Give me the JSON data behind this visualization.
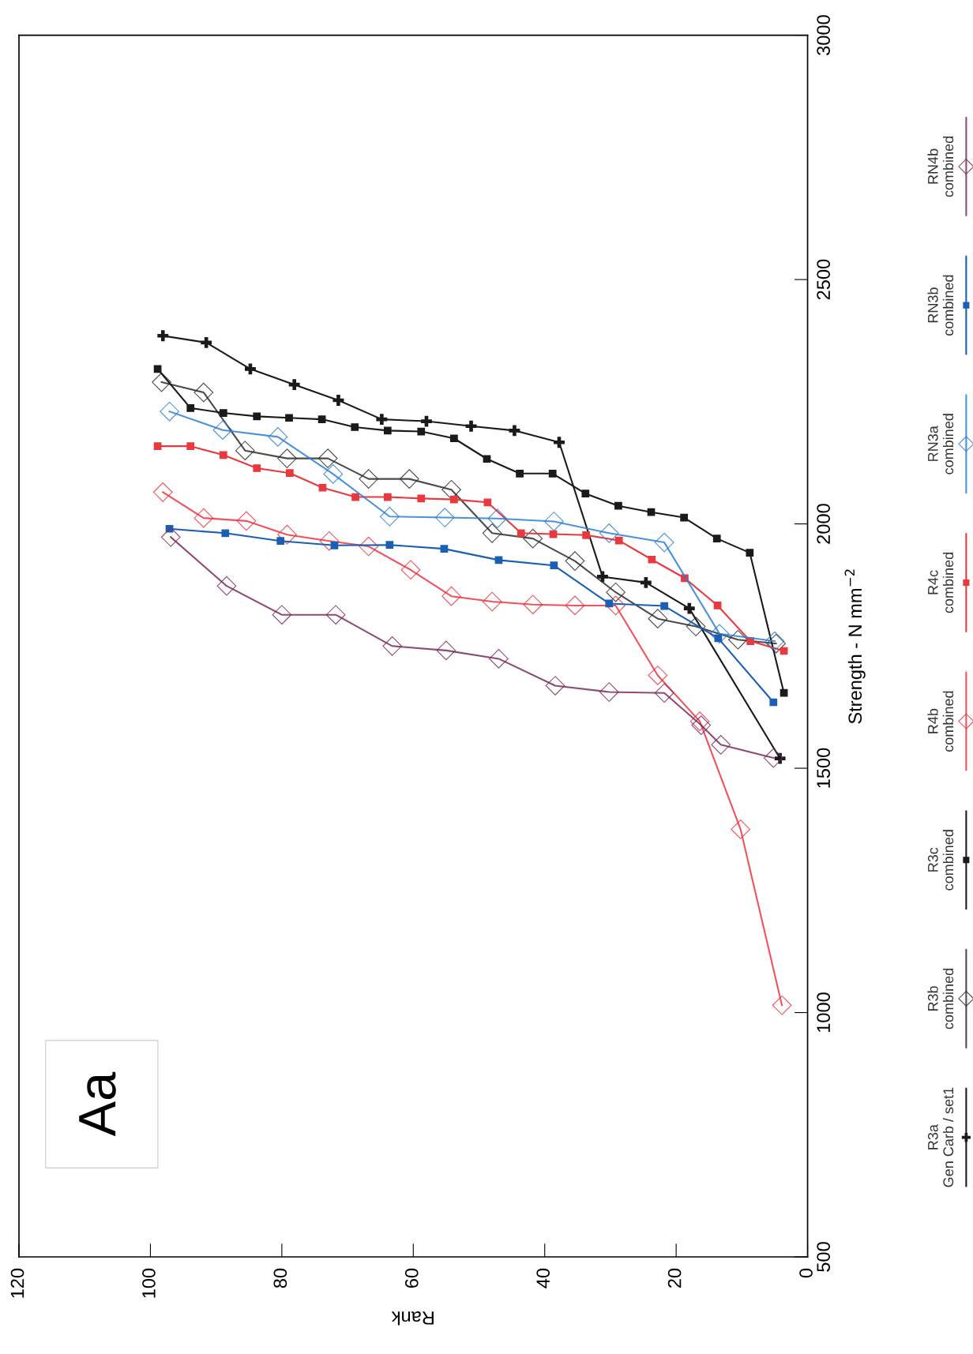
{
  "chart_data": {
    "type": "line",
    "xlabel": "Rank",
    "ylabel": "Strength - N mm$^{−2}$",
    "xlim": [
      120,
      0
    ],
    "xticks": [
      120,
      100,
      80,
      60,
      40,
      20,
      0
    ],
    "ylim": [
      500,
      3000
    ],
    "yticks": [
      500,
      1000,
      1500,
      2000,
      2500,
      3000
    ],
    "grid": false,
    "legend": "right",
    "annotations": [
      "Aa"
    ],
    "series": [
      {
        "name": "R3a\nGen Carb / set1",
        "color": "#1a1a1a",
        "marker": "cross",
        "x": [
          98.1,
          91.5,
          84.8,
          78.1,
          71.4,
          64.8,
          58.0,
          51.2,
          44.6,
          37.8,
          31.2,
          24.6,
          18.0,
          4.2
        ],
        "values": [
          2385,
          2371,
          2317,
          2285,
          2253,
          2214,
          2210,
          2200,
          2191,
          2167,
          1892,
          1880,
          1827,
          1520
        ]
      },
      {
        "name": "R3b\ncombined",
        "color": "#2b2b2b",
        "marker": "diamond",
        "x": [
          98.3,
          91.9,
          85.6,
          79.2,
          73.0,
          66.8,
          60.6,
          54.2,
          48.0,
          41.8,
          35.4,
          29.2,
          22.8,
          17.0,
          10.6,
          4.8
        ],
        "values": [
          2290,
          2269,
          2150,
          2134,
          2134,
          2092,
          2092,
          2070,
          1981,
          1970,
          1924,
          1860,
          1806,
          1790,
          1763,
          1755
        ]
      },
      {
        "name": "R3c\ncombined",
        "color": "#1a1a1a",
        "marker": "square",
        "x": [
          98.9,
          93.9,
          88.9,
          83.8,
          78.9,
          73.9,
          68.9,
          63.9,
          58.8,
          53.8,
          48.8,
          43.8,
          38.8,
          33.8,
          28.8,
          23.8,
          18.8,
          13.8,
          8.8,
          3.6
        ],
        "values": [
          2317,
          2237,
          2227,
          2220,
          2217,
          2214,
          2198,
          2191,
          2189,
          2175,
          2133,
          2103,
          2103,
          2062,
          2037,
          2024,
          2013,
          1970,
          1941,
          1654
        ]
      },
      {
        "name": "R4b\ncombined",
        "color": "#ee3340",
        "marker": "diamond",
        "x": [
          98.1,
          91.9,
          85.4,
          79.2,
          72.8,
          66.8,
          60.4,
          54.2,
          48.0,
          41.8,
          35.4,
          29.2,
          22.8,
          16.4,
          10.2,
          3.9
        ],
        "values": [
          2065,
          2012,
          2006,
          1978,
          1965,
          1954,
          1906,
          1852,
          1841,
          1835,
          1833,
          1833,
          1690,
          1596,
          1375,
          1015
        ]
      },
      {
        "name": "R4c\ncombined",
        "color": "#e8393f",
        "marker": "square",
        "x": [
          98.9,
          93.9,
          88.9,
          83.8,
          78.8,
          73.8,
          68.8,
          63.9,
          58.8,
          53.8,
          48.7,
          43.6,
          38.7,
          33.7,
          28.7,
          23.7,
          18.7,
          13.7,
          8.7,
          3.6
        ],
        "values": [
          2159,
          2159,
          2141,
          2114,
          2104,
          2074,
          2055,
          2055,
          2052,
          2050,
          2044,
          1981,
          1979,
          1977,
          1966,
          1927,
          1889,
          1833,
          1760,
          1740
        ]
      },
      {
        "name": "RN3a\ncombined",
        "color": "#2a7fd4",
        "marker": "diamond",
        "x": [
          97.1,
          89.0,
          80.6,
          72.2,
          63.6,
          55.2,
          47.2,
          38.6,
          30.2,
          21.8,
          13.4,
          5.0
        ],
        "values": [
          2230,
          2192,
          2178,
          2102,
          2015,
          2013,
          2011,
          2005,
          1981,
          1962,
          1775,
          1760
        ]
      },
      {
        "name": "RN3b\ncombined",
        "color": "#1a5fb4",
        "marker": "square",
        "x": [
          97.1,
          88.6,
          80.2,
          72.0,
          63.6,
          55.3,
          47.0,
          38.6,
          30.2,
          21.8,
          13.6,
          5.2
        ],
        "values": [
          1990,
          1981,
          1965,
          1956,
          1957,
          1949,
          1926,
          1915,
          1837,
          1832,
          1766,
          1635
        ]
      },
      {
        "name": "RN4b\ncombined",
        "color": "#7a2a5a",
        "marker": "diamond",
        "x": [
          96.9,
          88.4,
          80.0,
          71.8,
          63.2,
          55.0,
          47.0,
          38.4,
          30.2,
          21.8,
          16.2,
          13.2,
          5.2
        ],
        "values": [
          1973,
          1873,
          1814,
          1814,
          1750,
          1741,
          1724,
          1669,
          1656,
          1654,
          1588,
          1548,
          1521
        ]
      }
    ]
  }
}
